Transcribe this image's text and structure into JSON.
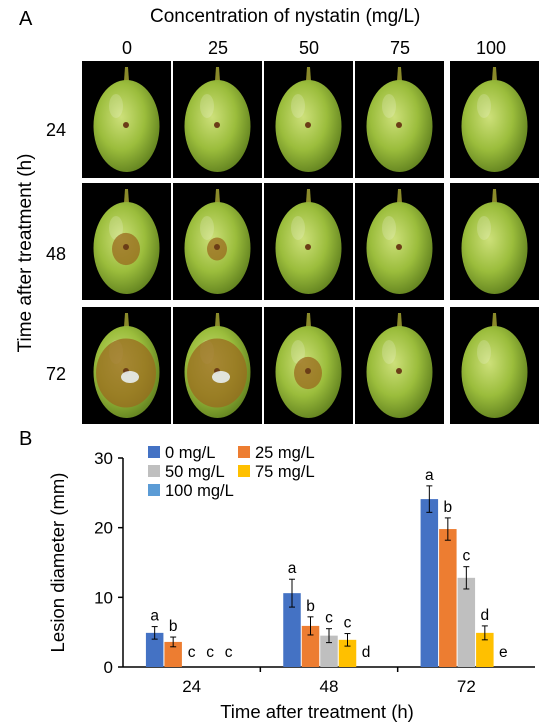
{
  "panel_a": {
    "letter": "A",
    "column_title": "Concentration of nystatin (mg/L)",
    "columns": [
      "0",
      "25",
      "50",
      "75",
      "100"
    ],
    "row_title": "Time after treatment (h)",
    "rows": [
      "24",
      "48",
      "72"
    ],
    "photos": [
      [
        {
          "lesion": "small"
        },
        {
          "lesion": "small"
        },
        {
          "lesion": "small"
        },
        {
          "lesion": "small"
        },
        {
          "lesion": "none"
        }
      ],
      [
        {
          "lesion": "medium"
        },
        {
          "lesion": "medium-small"
        },
        {
          "lesion": "small"
        },
        {
          "lesion": "small"
        },
        {
          "lesion": "none"
        }
      ],
      [
        {
          "lesion": "large"
        },
        {
          "lesion": "large"
        },
        {
          "lesion": "medium"
        },
        {
          "lesion": "small"
        },
        {
          "lesion": "none"
        }
      ]
    ]
  },
  "panel_b": {
    "letter": "B",
    "chart_data": {
      "type": "bar",
      "categories": [
        "24",
        "48",
        "72"
      ],
      "xlabel": "Time after treatment (h)",
      "ylabel": "Lesion diameter (mm)",
      "ylim": [
        0,
        30
      ],
      "yticks": [
        0,
        10,
        20,
        30
      ],
      "grid": false,
      "legend_position": "top-left",
      "series": [
        {
          "name": "0 mg/L",
          "color": "#4472C4",
          "values": [
            4.9,
            10.6,
            24.1
          ],
          "errors": [
            0.9,
            2.0,
            1.9
          ],
          "letters": [
            "a",
            "a",
            "a"
          ]
        },
        {
          "name": "25 mg/L",
          "color": "#ED7D31",
          "values": [
            3.6,
            5.9,
            19.8
          ],
          "errors": [
            0.7,
            1.3,
            1.6
          ],
          "letters": [
            "b",
            "b",
            "b"
          ]
        },
        {
          "name": "50 mg/L",
          "color": "#BFBFBF",
          "values": [
            0,
            4.5,
            12.8
          ],
          "errors": [
            0,
            1.0,
            1.6
          ],
          "letters": [
            "c",
            "c",
            "c"
          ]
        },
        {
          "name": "75 mg/L",
          "color": "#FFC000",
          "values": [
            0,
            3.9,
            4.9
          ],
          "errors": [
            0,
            0.9,
            1.0
          ],
          "letters": [
            "c",
            "c",
            "d"
          ]
        },
        {
          "name": "100 mg/L",
          "color": "#5B9BD5",
          "values": [
            0,
            0,
            0
          ],
          "errors": [
            0,
            0,
            0
          ],
          "letters": [
            "c",
            "d",
            "e"
          ]
        }
      ]
    }
  }
}
